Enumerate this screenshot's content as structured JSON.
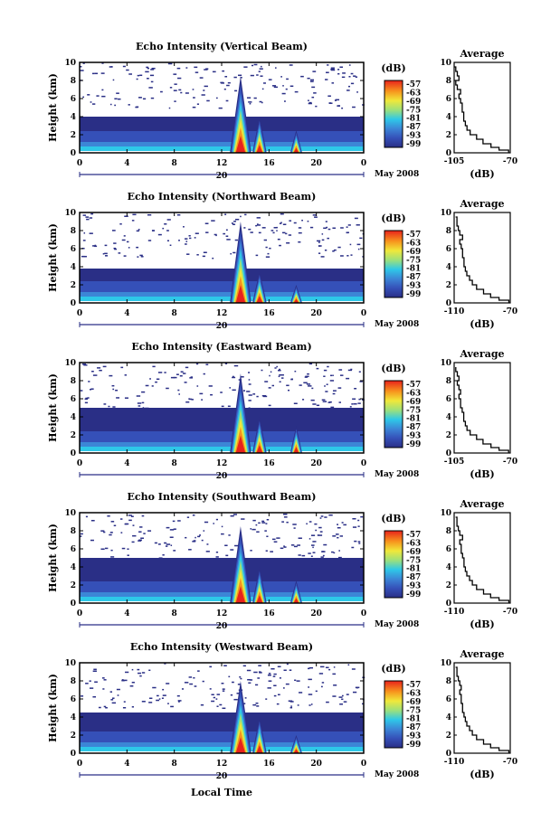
{
  "page": {
    "xlabel": "Local Time",
    "date_label": "May 2008",
    "day_label": "20",
    "height_label": "Height (km)",
    "avg_title": "Average",
    "avg_xlabel": "(dB)",
    "cbar_unit": "(dB)"
  },
  "chart_data": [
    {
      "type": "heatmap",
      "title": "Echo Intensity (Vertical Beam)",
      "ylabel": "Height (km)",
      "xlabel": "",
      "x_ticks": [
        "0",
        "4",
        "8",
        "12",
        "16",
        "20",
        "0"
      ],
      "y_ticks": [
        "0",
        "2",
        "4",
        "6",
        "8",
        "10"
      ],
      "xlim": [
        0,
        24
      ],
      "ylim": [
        0,
        10
      ],
      "colorbar": {
        "label": "(dB)",
        "ticks": [
          "-57",
          "-63",
          "-69",
          "-75",
          "-81",
          "-87",
          "-93",
          "-99"
        ],
        "range": [
          -99,
          -57
        ]
      },
      "colors": {
        "low": "#2a2f86",
        "high": "#e8221c"
      },
      "features": {
        "cell1_time": 13.6,
        "cell1_top_km": 8.5,
        "cell2_time": 15.2,
        "cell2_top_km": 4.0,
        "cell3_time": 18.3,
        "cell3_top_km": 2.5,
        "cloud_top_km": 4.0
      },
      "profile": {
        "title": "Average",
        "xlabel": "(dB)",
        "x_ticks": [
          "-105",
          "-70"
        ],
        "xlim": [
          -105,
          -70
        ],
        "y_ticks": [
          "0",
          "2",
          "4",
          "6",
          "8",
          "10"
        ],
        "ylim": [
          0,
          10
        ],
        "x": [
          -71,
          -77,
          -82,
          -87,
          -91,
          -95,
          -97,
          -98,
          -99,
          -99,
          -100,
          -100,
          -101,
          -102,
          -101,
          -103,
          -104,
          -102,
          -103,
          -104,
          -105
        ],
        "y": [
          0,
          0.3,
          0.6,
          1,
          1.5,
          2,
          2.5,
          3,
          3.5,
          4,
          4.5,
          5,
          5.5,
          6,
          6.5,
          7,
          7.5,
          8,
          8.5,
          9,
          9.5
        ]
      }
    },
    {
      "type": "heatmap",
      "title": "Echo Intensity (Northward Beam)",
      "ylabel": "Height (km)",
      "xlabel": "",
      "x_ticks": [
        "0",
        "4",
        "8",
        "12",
        "16",
        "20",
        "0"
      ],
      "y_ticks": [
        "0",
        "2",
        "4",
        "6",
        "8",
        "10"
      ],
      "xlim": [
        0,
        24
      ],
      "ylim": [
        0,
        10
      ],
      "colorbar": {
        "label": "(dB)",
        "ticks": [
          "-57",
          "-63",
          "-69",
          "-75",
          "-81",
          "-87",
          "-93",
          "-99"
        ],
        "range": [
          -99,
          -57
        ]
      },
      "colors": {
        "low": "#2a2f86",
        "high": "#e8221c"
      },
      "features": {
        "cell1_time": 13.6,
        "cell1_top_km": 9.0,
        "cell2_time": 15.2,
        "cell2_top_km": 3.5,
        "cell3_time": 18.3,
        "cell3_top_km": 2.0,
        "cloud_top_km": 3.8
      },
      "profile": {
        "title": "Average",
        "xlabel": "(dB)",
        "x_ticks": [
          "-110",
          "-70"
        ],
        "xlim": [
          -110,
          -70
        ],
        "y_ticks": [
          "0",
          "2",
          "4",
          "6",
          "8",
          "10"
        ],
        "ylim": [
          0,
          10
        ],
        "x": [
          -71,
          -78,
          -84,
          -89,
          -94,
          -97,
          -99,
          -101,
          -102,
          -103,
          -103,
          -104,
          -104,
          -105,
          -106,
          -104,
          -106,
          -107,
          -108,
          -108,
          -109
        ],
        "y": [
          0,
          0.3,
          0.6,
          1,
          1.5,
          2,
          2.5,
          3,
          3.5,
          4,
          4.5,
          5,
          5.5,
          6,
          6.5,
          7,
          7.5,
          8,
          8.5,
          9,
          9.5
        ]
      }
    },
    {
      "type": "heatmap",
      "title": "Echo Intensity (Eastward Beam)",
      "ylabel": "Height (km)",
      "xlabel": "",
      "x_ticks": [
        "0",
        "4",
        "8",
        "12",
        "16",
        "20",
        "0"
      ],
      "y_ticks": [
        "0",
        "2",
        "4",
        "6",
        "8",
        "10"
      ],
      "xlim": [
        0,
        24
      ],
      "ylim": [
        0,
        10
      ],
      "colorbar": {
        "label": "(dB)",
        "ticks": [
          "-57",
          "-63",
          "-69",
          "-75",
          "-81",
          "-87",
          "-93",
          "-99"
        ],
        "range": [
          -99,
          -57
        ]
      },
      "colors": {
        "low": "#2a2f86",
        "high": "#e8221c"
      },
      "features": {
        "cell1_time": 13.6,
        "cell1_top_km": 8.8,
        "cell2_time": 15.2,
        "cell2_top_km": 4.0,
        "cell3_time": 18.3,
        "cell3_top_km": 3.0,
        "cloud_top_km": 5.0
      },
      "profile": {
        "title": "Average",
        "xlabel": "(dB)",
        "x_ticks": [
          "-105",
          "-70"
        ],
        "xlim": [
          -105,
          -70
        ],
        "y_ticks": [
          "0",
          "2",
          "4",
          "6",
          "8",
          "10"
        ],
        "ylim": [
          0,
          10
        ],
        "x": [
          -71,
          -77,
          -82,
          -87,
          -91,
          -95,
          -97,
          -98,
          -99,
          -99,
          -100,
          -101,
          -101,
          -102,
          -101,
          -102,
          -103,
          -102,
          -103,
          -104,
          -104
        ],
        "y": [
          0,
          0.3,
          0.6,
          1,
          1.5,
          2,
          2.5,
          3,
          3.5,
          4,
          4.5,
          5,
          5.5,
          6,
          6.5,
          7,
          7.5,
          8,
          8.5,
          9,
          9.5
        ]
      }
    },
    {
      "type": "heatmap",
      "title": "Echo Intensity (Southward Beam)",
      "ylabel": "Height (km)",
      "xlabel": "",
      "x_ticks": [
        "0",
        "4",
        "8",
        "12",
        "16",
        "20",
        "0"
      ],
      "y_ticks": [
        "0",
        "2",
        "4",
        "6",
        "8",
        "10"
      ],
      "xlim": [
        0,
        24
      ],
      "ylim": [
        0,
        10
      ],
      "colorbar": {
        "label": "(dB)",
        "ticks": [
          "-57",
          "-63",
          "-69",
          "-75",
          "-81",
          "-87",
          "-93",
          "-99"
        ],
        "range": [
          -99,
          -57
        ]
      },
      "colors": {
        "low": "#2a2f86",
        "high": "#e8221c"
      },
      "features": {
        "cell1_time": 13.6,
        "cell1_top_km": 8.5,
        "cell2_time": 15.2,
        "cell2_top_km": 4.0,
        "cell3_time": 18.3,
        "cell3_top_km": 2.5,
        "cloud_top_km": 5.0
      },
      "profile": {
        "title": "Average",
        "xlabel": "(dB)",
        "x_ticks": [
          "-110",
          "-70"
        ],
        "xlim": [
          -110,
          -70
        ],
        "y_ticks": [
          "0",
          "2",
          "4",
          "6",
          "8",
          "10"
        ],
        "ylim": [
          0,
          10
        ],
        "x": [
          -71,
          -78,
          -84,
          -89,
          -94,
          -97,
          -99,
          -101,
          -102,
          -103,
          -103,
          -104,
          -105,
          -105,
          -106,
          -104,
          -106,
          -107,
          -108,
          -108,
          -109
        ],
        "y": [
          0,
          0.3,
          0.6,
          1,
          1.5,
          2,
          2.5,
          3,
          3.5,
          4,
          4.5,
          5,
          5.5,
          6,
          6.5,
          7,
          7.5,
          8,
          8.5,
          9,
          9.5
        ]
      }
    },
    {
      "type": "heatmap",
      "title": "Echo Intensity (Westward Beam)",
      "ylabel": "Height (km)",
      "xlabel": "Local Time",
      "x_ticks": [
        "0",
        "4",
        "8",
        "12",
        "16",
        "20",
        "0"
      ],
      "y_ticks": [
        "0",
        "2",
        "4",
        "6",
        "8",
        "10"
      ],
      "xlim": [
        0,
        24
      ],
      "ylim": [
        0,
        10
      ],
      "colorbar": {
        "label": "(dB)",
        "ticks": [
          "-57",
          "-63",
          "-69",
          "-75",
          "-81",
          "-87",
          "-93",
          "-99"
        ],
        "range": [
          -99,
          -57
        ]
      },
      "colors": {
        "low": "#2a2f86",
        "high": "#e8221c"
      },
      "features": {
        "cell1_time": 13.6,
        "cell1_top_km": 8.0,
        "cell2_time": 15.2,
        "cell2_top_km": 4.0,
        "cell3_time": 18.3,
        "cell3_top_km": 2.0,
        "cloud_top_km": 4.5
      },
      "profile": {
        "title": "Average",
        "xlabel": "(dB)",
        "x_ticks": [
          "-110",
          "-70"
        ],
        "xlim": [
          -110,
          -70
        ],
        "y_ticks": [
          "0",
          "2",
          "4",
          "6",
          "8",
          "10"
        ],
        "ylim": [
          0,
          10
        ],
        "x": [
          -71,
          -78,
          -84,
          -89,
          -94,
          -97,
          -99,
          -101,
          -102,
          -103,
          -104,
          -104,
          -105,
          -105,
          -106,
          -105,
          -106,
          -107,
          -108,
          -108,
          -109
        ],
        "y": [
          0,
          0.3,
          0.6,
          1,
          1.5,
          2,
          2.5,
          3,
          3.5,
          4,
          4.5,
          5,
          5.5,
          6,
          6.5,
          7,
          7.5,
          8,
          8.5,
          9,
          9.5
        ]
      }
    }
  ]
}
